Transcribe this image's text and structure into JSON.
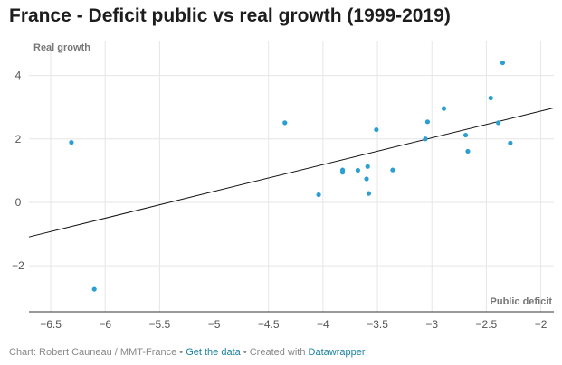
{
  "chart_data": {
    "type": "scatter",
    "title": "France - Deficit public vs real growth (1999-2019)",
    "xlabel": "Public deficit",
    "ylabel": "Real growth",
    "xlim": [
      -6.7,
      -1.88
    ],
    "ylim": [
      -3.45,
      5.1
    ],
    "xticks": [
      -6.5,
      -6,
      -5.5,
      -5,
      -4.5,
      -4,
      -3.5,
      -3,
      -2.5,
      -2
    ],
    "yticks": [
      -2,
      0,
      2,
      4
    ],
    "grid": true,
    "point_color": "#2a9fd0",
    "points": [
      {
        "x": -6.31,
        "y": 1.89
      },
      {
        "x": -6.1,
        "y": -2.74
      },
      {
        "x": -4.35,
        "y": 2.51
      },
      {
        "x": -4.04,
        "y": 0.24
      },
      {
        "x": -3.82,
        "y": 1.02
      },
      {
        "x": -3.82,
        "y": 0.95
      },
      {
        "x": -3.68,
        "y": 1.01
      },
      {
        "x": -3.59,
        "y": 1.13
      },
      {
        "x": -3.6,
        "y": 0.74
      },
      {
        "x": -3.58,
        "y": 0.28
      },
      {
        "x": -3.51,
        "y": 2.29
      },
      {
        "x": -3.36,
        "y": 1.02
      },
      {
        "x": -3.06,
        "y": 2.0
      },
      {
        "x": -3.04,
        "y": 2.54
      },
      {
        "x": -2.89,
        "y": 2.96
      },
      {
        "x": -2.69,
        "y": 2.12
      },
      {
        "x": -2.67,
        "y": 1.61
      },
      {
        "x": -2.46,
        "y": 3.29
      },
      {
        "x": -2.39,
        "y": 2.51
      },
      {
        "x": -2.35,
        "y": 4.4
      },
      {
        "x": -2.28,
        "y": 1.87
      }
    ],
    "trendline": {
      "x": [
        -6.7,
        -1.88
      ],
      "y": [
        -1.09,
        2.98
      ]
    }
  },
  "footer": {
    "source": "Chart: Robert Cauneau / MMT-France",
    "sep1": " • ",
    "get_data": "Get the data",
    "sep2": " • Created with ",
    "dw": "Datawrapper"
  }
}
